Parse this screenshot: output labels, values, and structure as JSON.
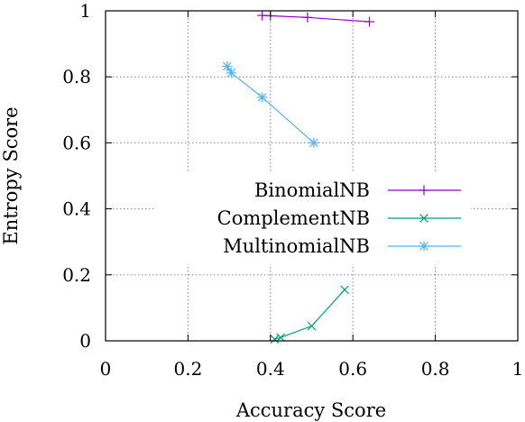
{
  "chart_data": {
    "type": "line",
    "title": "",
    "xlabel": "Accuracy Score",
    "ylabel": "Entropy Score",
    "xlim": [
      0,
      1
    ],
    "ylim": [
      0,
      1
    ],
    "xticks": [
      "0",
      "0.2",
      "0.4",
      "0.6",
      "0.8",
      "1"
    ],
    "yticks": [
      "0",
      "0.2",
      "0.4",
      "0.6",
      "0.8",
      "1"
    ],
    "grid": true,
    "legend_position": "center-right",
    "series": [
      {
        "name": "BinomialNB",
        "color": "#9400d3",
        "marker": "plus",
        "x": [
          0.38,
          0.4,
          0.49,
          0.64
        ],
        "y": [
          0.986,
          0.985,
          0.98,
          0.967
        ]
      },
      {
        "name": "ComplementNB",
        "color": "#009e73",
        "marker": "cross",
        "x": [
          0.41,
          0.425,
          0.5,
          0.58
        ],
        "y": [
          0.005,
          0.01,
          0.045,
          0.155
        ]
      },
      {
        "name": "MultinomialNB",
        "color": "#56b4e9",
        "marker": "star",
        "x": [
          0.295,
          0.305,
          0.38,
          0.505
        ],
        "y": [
          0.832,
          0.812,
          0.738,
          0.6
        ]
      }
    ]
  }
}
